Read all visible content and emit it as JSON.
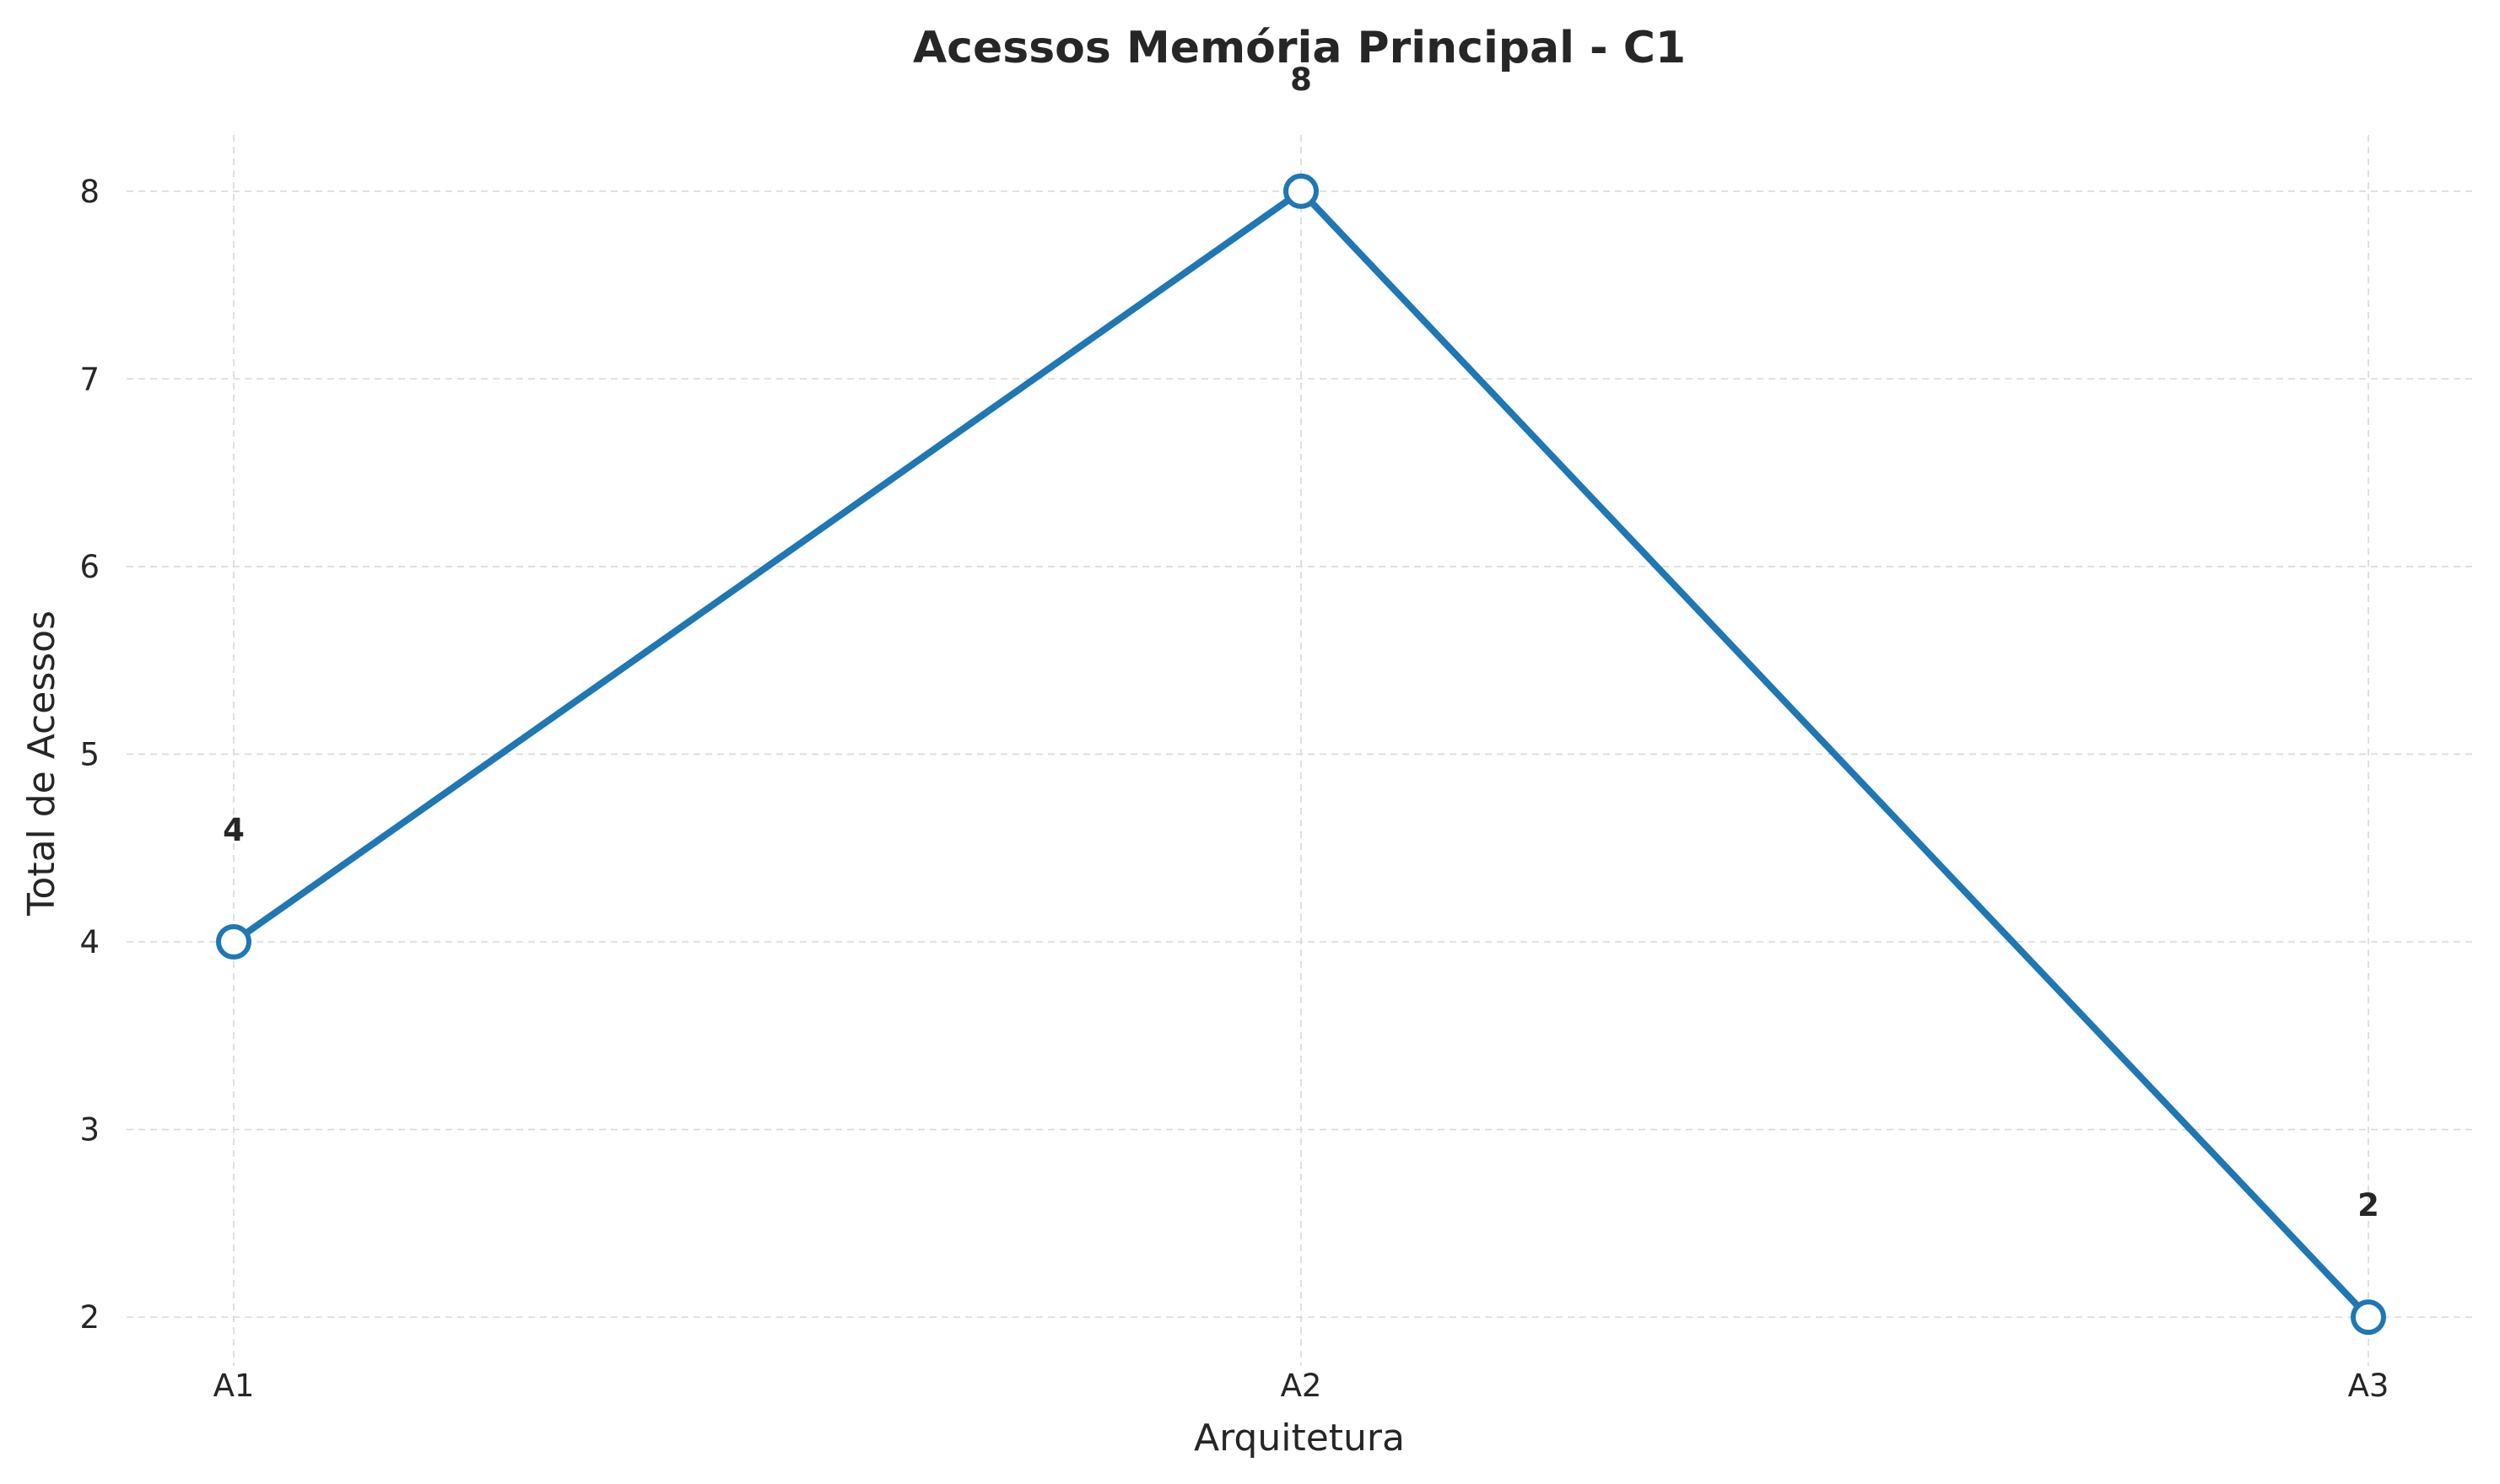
{
  "chart_data": {
    "type": "line",
    "title": "Acessos Memória Principal - C1",
    "xlabel": "Arquitetura",
    "ylabel": "Total de Acessos",
    "categories": [
      "A1",
      "A2",
      "A3"
    ],
    "series": [
      {
        "values": [
          4,
          8,
          2
        ],
        "color": "#1f77b4"
      }
    ],
    "data_labels": [
      "4",
      "8",
      "2"
    ],
    "yticks": [
      2,
      3,
      4,
      5,
      6,
      7,
      8
    ],
    "ylim": [
      1.74,
      8.3
    ],
    "grid": true,
    "marker": "open-circle",
    "colors": {
      "line": "#1f77b4",
      "marker_fill": "#ffffff",
      "grid": "#d9d9d9",
      "text": "#262626"
    }
  }
}
